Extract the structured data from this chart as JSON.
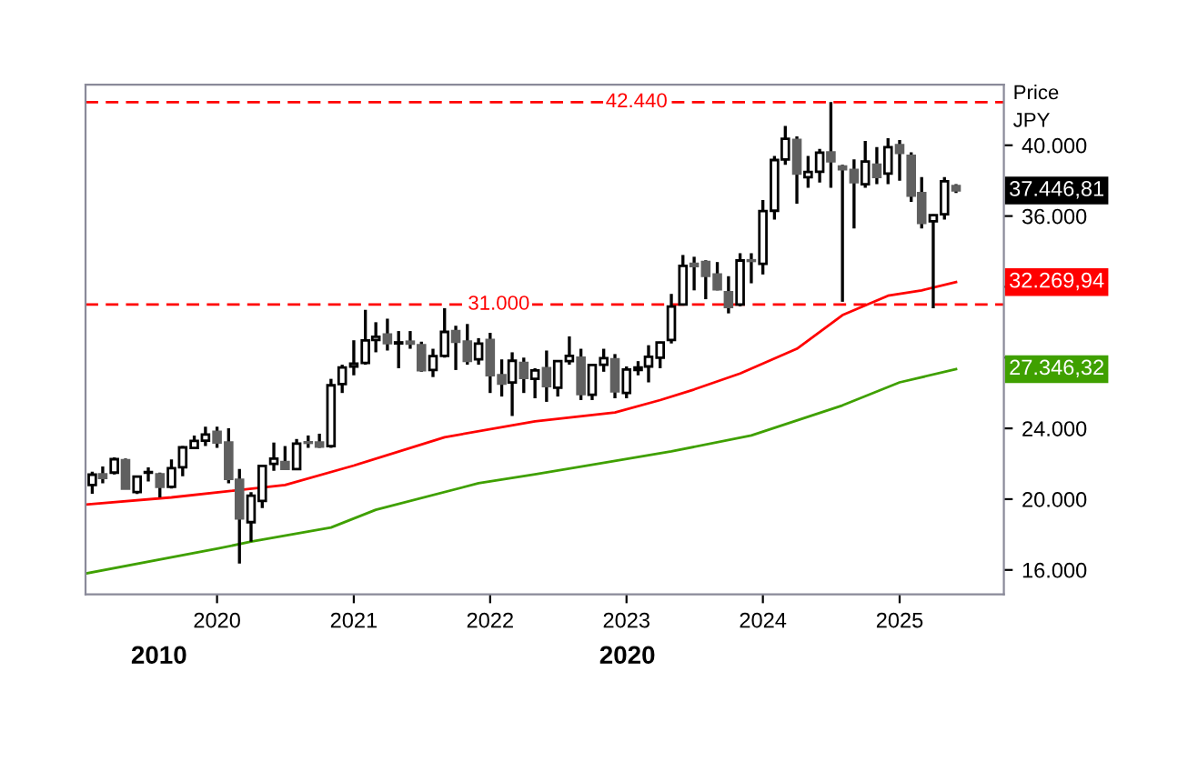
{
  "chart_data": {
    "type": "candlestick",
    "ylabel": "Price\nJPY",
    "x": [
      "2019-02",
      "2019-03",
      "2019-04",
      "2019-05",
      "2019-06",
      "2019-07",
      "2019-08",
      "2019-09",
      "2019-10",
      "2019-11",
      "2019-12",
      "2020-01",
      "2020-02",
      "2020-03",
      "2020-04",
      "2020-05",
      "2020-06",
      "2020-07",
      "2020-08",
      "2020-09",
      "2020-10",
      "2020-11",
      "2020-12",
      "2021-01",
      "2021-02",
      "2021-03",
      "2021-04",
      "2021-05",
      "2021-06",
      "2021-07",
      "2021-08",
      "2021-09",
      "2021-10",
      "2021-11",
      "2021-12",
      "2022-01",
      "2022-02",
      "2022-03",
      "2022-04",
      "2022-05",
      "2022-06",
      "2022-07",
      "2022-08",
      "2022-09",
      "2022-10",
      "2022-11",
      "2022-12",
      "2023-01",
      "2023-02",
      "2023-03",
      "2023-04",
      "2023-05",
      "2023-06",
      "2023-07",
      "2023-08",
      "2023-09",
      "2023-10",
      "2023-11",
      "2023-12",
      "2024-01",
      "2024-02",
      "2024-03",
      "2024-04",
      "2024-05",
      "2024-06",
      "2024-07",
      "2024-08",
      "2024-09",
      "2024-10",
      "2024-11",
      "2024-12",
      "2025-01",
      "2025-02",
      "2025-03",
      "2025-04",
      "2025-05",
      "2025-06"
    ],
    "ohlc": [
      [
        20800,
        21550,
        20300,
        21385
      ],
      [
        21400,
        21850,
        20900,
        21205
      ],
      [
        21500,
        22360,
        21400,
        22258
      ],
      [
        22200,
        22300,
        20600,
        20601
      ],
      [
        20400,
        21300,
        20290,
        21276
      ],
      [
        21500,
        21800,
        21000,
        21521
      ],
      [
        21400,
        21500,
        20100,
        20704
      ],
      [
        20700,
        22250,
        20600,
        21756
      ],
      [
        21800,
        23000,
        21300,
        22927
      ],
      [
        22900,
        23600,
        22900,
        23294
      ],
      [
        23300,
        24100,
        23000,
        23657
      ],
      [
        23800,
        24100,
        22900,
        23205
      ],
      [
        23200,
        24000,
        20900,
        21143
      ],
      [
        21100,
        21700,
        16358,
        18917
      ],
      [
        18700,
        20400,
        17600,
        20194
      ],
      [
        19900,
        21900,
        19500,
        21878
      ],
      [
        22000,
        23200,
        21600,
        22288
      ],
      [
        22100,
        23000,
        21700,
        21710
      ],
      [
        21700,
        23400,
        21700,
        23140
      ],
      [
        23200,
        23600,
        22900,
        23185
      ],
      [
        23200,
        23700,
        22900,
        22977
      ],
      [
        23000,
        26800,
        22900,
        26434
      ],
      [
        26500,
        27600,
        26000,
        27444
      ],
      [
        27500,
        28980,
        27000,
        27663
      ],
      [
        27700,
        30700,
        27600,
        28966
      ],
      [
        29000,
        30000,
        28300,
        29179
      ],
      [
        29300,
        30200,
        28400,
        28813
      ],
      [
        28800,
        29500,
        27400,
        28860
      ],
      [
        28900,
        29500,
        28500,
        28792
      ],
      [
        28700,
        28900,
        27200,
        27284
      ],
      [
        27300,
        28500,
        26900,
        28090
      ],
      [
        28100,
        30795,
        28000,
        29453
      ],
      [
        29500,
        29800,
        27300,
        28893
      ],
      [
        28900,
        29900,
        27600,
        27822
      ],
      [
        27900,
        29100,
        27600,
        28792
      ],
      [
        29000,
        29400,
        26000,
        27002
      ],
      [
        27000,
        27900,
        25800,
        26527
      ],
      [
        26600,
        28300,
        24700,
        27821
      ],
      [
        27700,
        28000,
        26000,
        26848
      ],
      [
        26800,
        27400,
        25700,
        27280
      ],
      [
        27400,
        28400,
        25500,
        26393
      ],
      [
        26300,
        27850,
        25800,
        27802
      ],
      [
        27800,
        29200,
        27600,
        28092
      ],
      [
        28000,
        28500,
        25600,
        25937
      ],
      [
        25900,
        27600,
        25600,
        27587
      ],
      [
        27600,
        28500,
        27200,
        27969
      ],
      [
        27900,
        28200,
        25700,
        26095
      ],
      [
        26000,
        27500,
        25700,
        27327
      ],
      [
        27300,
        27800,
        27000,
        27446
      ],
      [
        27500,
        28700,
        26600,
        28041
      ],
      [
        28000,
        28900,
        27400,
        28856
      ],
      [
        29000,
        31600,
        28800,
        30888
      ],
      [
        31000,
        33800,
        31000,
        33189
      ],
      [
        33300,
        33700,
        31800,
        33172
      ],
      [
        33400,
        33500,
        31300,
        32619
      ],
      [
        32700,
        33400,
        31800,
        31858
      ],
      [
        31700,
        32600,
        30500,
        30859
      ],
      [
        31000,
        33900,
        30900,
        33487
      ],
      [
        33500,
        33900,
        32200,
        33464
      ],
      [
        33300,
        36900,
        32700,
        36287
      ],
      [
        36300,
        39400,
        35800,
        39166
      ],
      [
        39200,
        41090,
        38900,
        40369
      ],
      [
        40300,
        40500,
        36700,
        38406
      ],
      [
        38200,
        39400,
        37600,
        38488
      ],
      [
        38500,
        39800,
        37900,
        39583
      ],
      [
        39600,
        42440,
        37600,
        39102
      ],
      [
        38800,
        38900,
        31156,
        38648
      ],
      [
        38600,
        39200,
        35300,
        37920
      ],
      [
        37800,
        40250,
        37600,
        39081
      ],
      [
        38900,
        39900,
        37800,
        38208
      ],
      [
        38400,
        40400,
        37800,
        39895
      ],
      [
        40000,
        40300,
        38000,
        39572
      ],
      [
        39400,
        39600,
        36800,
        37156
      ],
      [
        37300,
        38200,
        35300,
        35618
      ],
      [
        35700,
        36100,
        30793,
        36045
      ],
      [
        36100,
        38200,
        35800,
        37965
      ],
      [
        37700,
        37800,
        37300,
        37446.81
      ]
    ],
    "series": [
      {
        "type": "line",
        "color": "#ff0000",
        "x": [
          "2019-01-15",
          "2019-09",
          "2020-07",
          "2021-01",
          "2021-09",
          "2022-05",
          "2022-12",
          "2023-04",
          "2023-07",
          "2023-11",
          "2024-04",
          "2024-08",
          "2024-12",
          "2025-03",
          "2025-06"
        ],
        "values": [
          19700,
          20100,
          20800,
          21900,
          23500,
          24400,
          24900,
          25600,
          26200,
          27100,
          28500,
          30400,
          31500,
          31800,
          32269.94
        ]
      },
      {
        "type": "line",
        "color": "#3fa000",
        "x": [
          "2019-01-15",
          "2020-01",
          "2020-04",
          "2020-11",
          "2021-03",
          "2021-12",
          "2022-05",
          "2023-05",
          "2023-12",
          "2024-08",
          "2025-01",
          "2025-06"
        ],
        "values": [
          15800,
          17200,
          17600,
          18400,
          19400,
          20900,
          21400,
          22700,
          23600,
          25300,
          26600,
          27346.32
        ]
      }
    ],
    "ref_lines": [
      {
        "axis": "y",
        "value": 42440,
        "label": "42.440",
        "color": "#ff0000",
        "line_style": "dashed"
      },
      {
        "axis": "y",
        "value": 31000,
        "label": "31.000",
        "color": "#ff0000",
        "line_style": "dashed"
      }
    ],
    "annotations": [
      "37.446,81",
      "32.269,94",
      "27.346,32",
      "2010",
      "2020"
    ],
    "xlim": [
      "2019-01-14",
      "2025-10-07"
    ],
    "xticks": [
      {
        "value": "2020-01",
        "label": "2020"
      },
      {
        "value": "2021-01",
        "label": "2021"
      },
      {
        "value": "2022-01",
        "label": "2022"
      },
      {
        "value": "2023-01",
        "label": "2023"
      },
      {
        "value": "2024-01",
        "label": "2024"
      },
      {
        "value": "2025-01",
        "label": "2025"
      }
    ],
    "ylim": [
      14620,
      43430
    ],
    "yticks": [
      {
        "value": 16000,
        "label": "16.000"
      },
      {
        "value": 20000,
        "label": "20.000"
      },
      {
        "value": 24000,
        "label": "24.000"
      },
      {
        "value": 28000,
        "label": null
      },
      {
        "value": 32000,
        "label": null
      },
      {
        "value": 36000,
        "label": "36.000"
      },
      {
        "value": 40000,
        "label": "40.000"
      }
    ],
    "grid": false,
    "legend": false
  }
}
